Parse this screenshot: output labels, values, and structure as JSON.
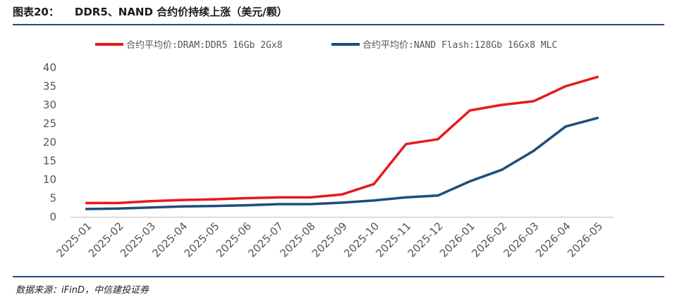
{
  "header": {
    "fig_label": "图表20：",
    "title": "DDR5、NAND 合约价持续上涨（美元/颗）"
  },
  "source": "数据来源：iFinD，中信建投证券",
  "chart_data": {
    "type": "line",
    "title": "DDR5、NAND 合约价持续上涨（美元/颗）",
    "xlabel": "",
    "ylabel": "",
    "ylim": [
      0,
      40
    ],
    "yticks": [
      0,
      5,
      10,
      15,
      20,
      25,
      30,
      35,
      40
    ],
    "grid": false,
    "legend_position": "top",
    "categories": [
      "2025-01",
      "2025-02",
      "2025-03",
      "2025-04",
      "2025-05",
      "2025-06",
      "2025-07",
      "2025-08",
      "2025-09",
      "2025-10",
      "2025-11",
      "2025-12",
      "2026-01",
      "2026-02",
      "2026-03",
      "2026-04",
      "2026-05"
    ],
    "series": [
      {
        "name": "合约平均价:DRAM:DDR5 16Gb 2Gx8",
        "color": "#e8191a",
        "values": [
          3.7,
          3.7,
          4.2,
          4.5,
          4.7,
          5.0,
          5.2,
          5.2,
          6.0,
          8.8,
          19.5,
          20.8,
          28.5,
          30.0,
          31.0,
          35.0,
          37.5
        ]
      },
      {
        "name": "合约平均价:NAND Flash:128Gb 16Gx8 MLC",
        "color": "#1c4e7a",
        "values": [
          2.1,
          2.2,
          2.5,
          2.8,
          2.9,
          3.1,
          3.4,
          3.4,
          3.8,
          4.4,
          5.2,
          5.7,
          9.5,
          12.6,
          17.7,
          24.2,
          26.5
        ]
      }
    ]
  }
}
